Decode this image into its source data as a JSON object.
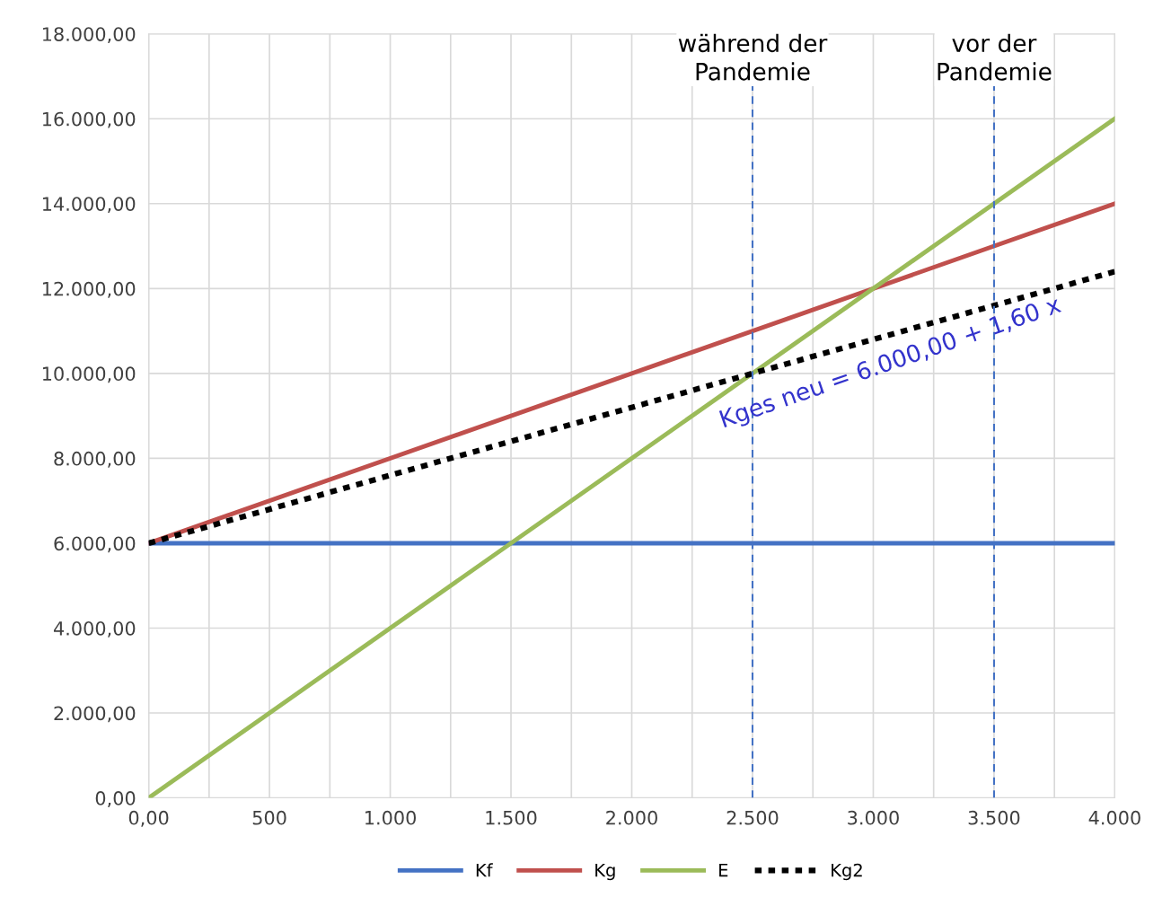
{
  "chart_data": {
    "type": "line",
    "x": [
      0,
      4000
    ],
    "series": [
      {
        "name": "Kf",
        "color": "#4472c4",
        "values": [
          6000,
          6000
        ]
      },
      {
        "name": "Kg",
        "color": "#c0504d",
        "values": [
          6000,
          14000
        ]
      },
      {
        "name": "E",
        "color": "#9bbb59",
        "values": [
          0,
          16000
        ]
      },
      {
        "name": "Kg2",
        "color": "#000000",
        "values": [
          6000,
          12400
        ],
        "line_style": "dotted"
      }
    ],
    "xlim": [
      0,
      4000
    ],
    "xticks": [
      {
        "value": 0,
        "label": "0,00"
      },
      {
        "value": 250,
        "label": null
      },
      500,
      {
        "value": 750,
        "label": null
      },
      {
        "value": 1000,
        "label": "1.000"
      },
      {
        "value": 1250,
        "label": null
      },
      {
        "value": 1500,
        "label": "1.500"
      },
      {
        "value": 1750,
        "label": null
      },
      {
        "value": 2000,
        "label": "2.000"
      },
      {
        "value": 2250,
        "label": null
      },
      {
        "value": 2500,
        "label": "2.500"
      },
      {
        "value": 2750,
        "label": null
      },
      {
        "value": 3000,
        "label": "3.000"
      },
      {
        "value": 3250,
        "label": null
      },
      {
        "value": 3500,
        "label": "3.500"
      },
      {
        "value": 3750,
        "label": null
      },
      {
        "value": 4000,
        "label": "4.000"
      }
    ],
    "ylim": [
      0,
      18000
    ],
    "yticks": [
      {
        "value": 0,
        "label": "0,00"
      },
      {
        "value": 2000,
        "label": "2.000,00"
      },
      {
        "value": 4000,
        "label": "4.000,00"
      },
      {
        "value": 6000,
        "label": "6.000,00"
      },
      {
        "value": 8000,
        "label": "8.000,00"
      },
      {
        "value": 10000,
        "label": "10.000,00"
      },
      {
        "value": 12000,
        "label": "12.000,00"
      },
      {
        "value": 14000,
        "label": "14.000,00"
      },
      {
        "value": 16000,
        "label": "16.000,00"
      },
      {
        "value": 18000,
        "label": "18.000,00"
      }
    ],
    "ref_lines": [
      {
        "axis": "x",
        "value": 2500,
        "label": "während der\nPandemie",
        "color": "#4472c4",
        "line_style": "dashed"
      },
      {
        "axis": "x",
        "value": 3500,
        "label": "vor der\nPandemie",
        "color": "#4472c4",
        "line_style": "dashed"
      }
    ],
    "annotations": [
      {
        "text": "Kges neu = 6.000,00 + 1,60 x",
        "x": 3050,
        "y": 10880
      }
    ],
    "grid": true,
    "legend": "bottom",
    "marker": "none"
  }
}
